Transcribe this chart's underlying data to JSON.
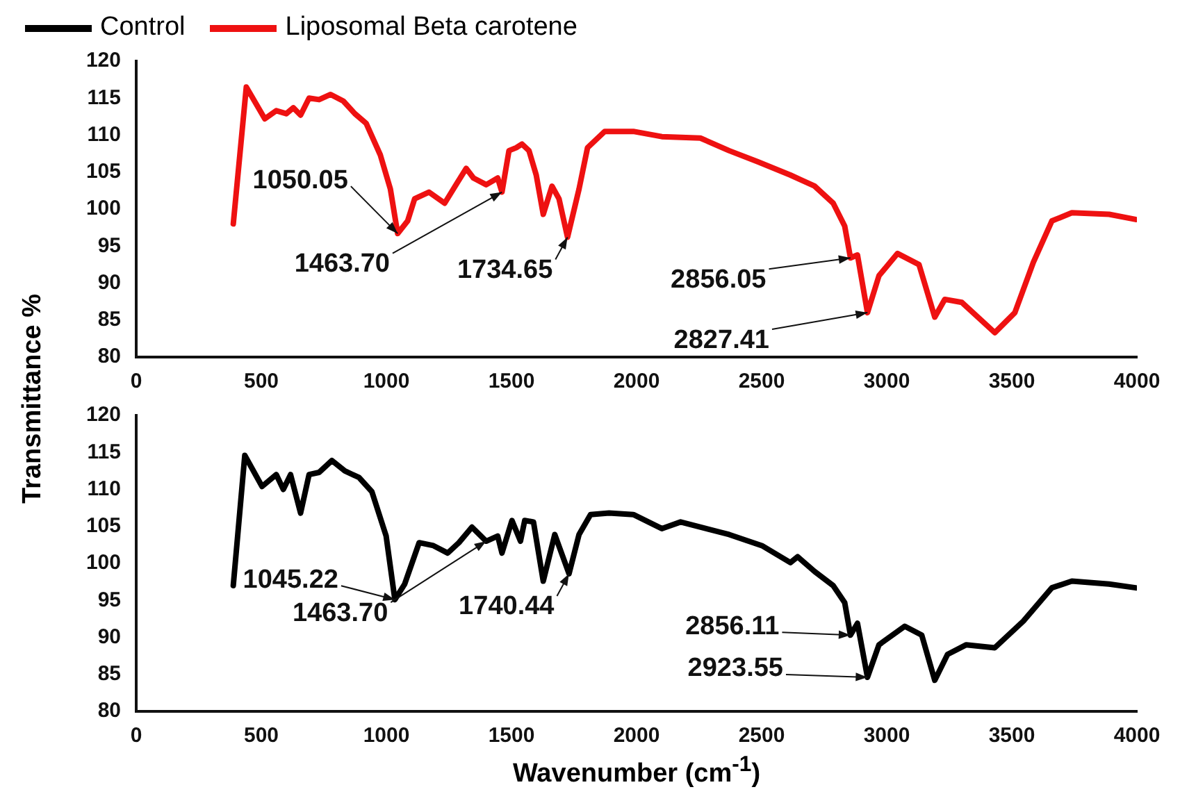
{
  "chart_data": [
    {
      "type": "line",
      "ylabel": "Transmittance %",
      "legend": "top",
      "xlim": [
        0,
        4000
      ],
      "xticks": [
        0,
        500,
        1000,
        1500,
        2000,
        2500,
        3000,
        3500,
        4000
      ],
      "ylim": [
        80,
        120
      ],
      "yticks": [
        80,
        85,
        90,
        95,
        100,
        105,
        110,
        115,
        120
      ],
      "grid": false,
      "marker": "none",
      "line_style": "solid",
      "series": [
        {
          "name": "Liposomal Beta carotene",
          "color": "#ee1111",
          "x": [
            388,
            440,
            514,
            560,
            600,
            628,
            657,
            691,
            731,
            777,
            828,
            874,
            919,
            976,
            1016,
            1045,
            1085,
            1113,
            1170,
            1233,
            1284,
            1319,
            1348,
            1399,
            1445,
            1462,
            1490,
            1519,
            1542,
            1570,
            1599,
            1627,
            1662,
            1690,
            1724,
            1770,
            1804,
            1873,
            1987,
            2101,
            2255,
            2370,
            2484,
            2615,
            2712,
            2786,
            2832,
            2855,
            2883,
            2923,
            2969,
            3043,
            3129,
            3192,
            3232,
            3300,
            3432,
            3512,
            3586,
            3660,
            3740,
            3889,
            3995
          ],
          "values": [
            98.0,
            116.5,
            112.2,
            113.3,
            112.9,
            113.7,
            112.7,
            115,
            114.8,
            115.5,
            114.6,
            112.9,
            111.6,
            107.3,
            102.7,
            96.7,
            98.4,
            101.4,
            102.3,
            100.8,
            103.6,
            105.5,
            104.2,
            103.3,
            104.2,
            102.3,
            107.9,
            108.3,
            108.8,
            107.9,
            104.6,
            99.3,
            103.1,
            101.4,
            96.2,
            102.7,
            108.3,
            110.5,
            110.5,
            109.8,
            109.6,
            107.9,
            106.4,
            104.6,
            103.1,
            100.8,
            97.7,
            93.4,
            93.8,
            86.0,
            91.0,
            94.0,
            92.5,
            85.4,
            87.8,
            87.4,
            83.3,
            86.0,
            92.8,
            98.4,
            99.5,
            99.3,
            98.6
          ]
        }
      ],
      "annotations": [
        {
          "text": "1050.05",
          "x": 1045,
          "y": 96.7
        },
        {
          "text": "1463.70",
          "x": 1462,
          "y": 102.3
        },
        {
          "text": "1734.65",
          "x": 1724,
          "y": 96.2
        },
        {
          "text": "2856.05",
          "x": 2855,
          "y": 93.4
        },
        {
          "text": "2827.41",
          "x": 2923,
          "y": 86.0
        }
      ]
    },
    {
      "type": "line",
      "xlabel": "Wavenumber (cm$^{-1}$)",
      "xlim": [
        0,
        4000
      ],
      "xticks": [
        0,
        500,
        1000,
        1500,
        2000,
        2500,
        3000,
        3500,
        4000
      ],
      "ylim": [
        80,
        120
      ],
      "yticks": [
        80,
        85,
        90,
        95,
        100,
        105,
        110,
        115,
        120
      ],
      "grid": false,
      "marker": "none",
      "line_style": "solid",
      "series": [
        {
          "name": "Control",
          "color": "#000000",
          "x": [
            388,
            434,
            503,
            560,
            588,
            617,
            657,
            691,
            731,
            782,
            834,
            891,
            942,
            999,
            1034,
            1073,
            1131,
            1188,
            1245,
            1290,
            1342,
            1399,
            1445,
            1462,
            1502,
            1536,
            1553,
            1588,
            1627,
            1673,
            1730,
            1770,
            1816,
            1890,
            1987,
            2101,
            2176,
            2370,
            2501,
            2615,
            2644,
            2712,
            2786,
            2832,
            2855,
            2883,
            2923,
            2969,
            3072,
            3140,
            3192,
            3243,
            3318,
            3432,
            3546,
            3660,
            3740,
            3889,
            3995
          ],
          "values": [
            97.0,
            114.6,
            110.4,
            112,
            110,
            112,
            106.8,
            112,
            112.3,
            113.9,
            112.5,
            111.6,
            109.7,
            103.7,
            95.1,
            97.2,
            102.8,
            102.4,
            101.4,
            102.8,
            104.9,
            103,
            103.7,
            101.4,
            105.8,
            103,
            105.8,
            105.6,
            97.6,
            103.9,
            98.6,
            103.9,
            106.6,
            106.8,
            106.6,
            104.7,
            105.6,
            103.9,
            102.4,
            100.1,
            100.9,
            98.9,
            97,
            94.7,
            90.3,
            91.9,
            84.6,
            89.0,
            91.5,
            90.3,
            84.2,
            87.7,
            89.0,
            88.6,
            92.2,
            96.7,
            97.6,
            97.2,
            96.7
          ]
        }
      ],
      "annotations": [
        {
          "text": "1045.22",
          "x": 1034,
          "y": 95.1
        },
        {
          "text": "1463.70",
          "x": 1399,
          "y": 103
        },
        {
          "text": "1740.44",
          "x": 1730,
          "y": 98.6
        },
        {
          "text": "2856.11",
          "x": 2855,
          "y": 90.3
        },
        {
          "text": "2923.55",
          "x": 2923,
          "y": 84.6
        }
      ]
    }
  ]
}
